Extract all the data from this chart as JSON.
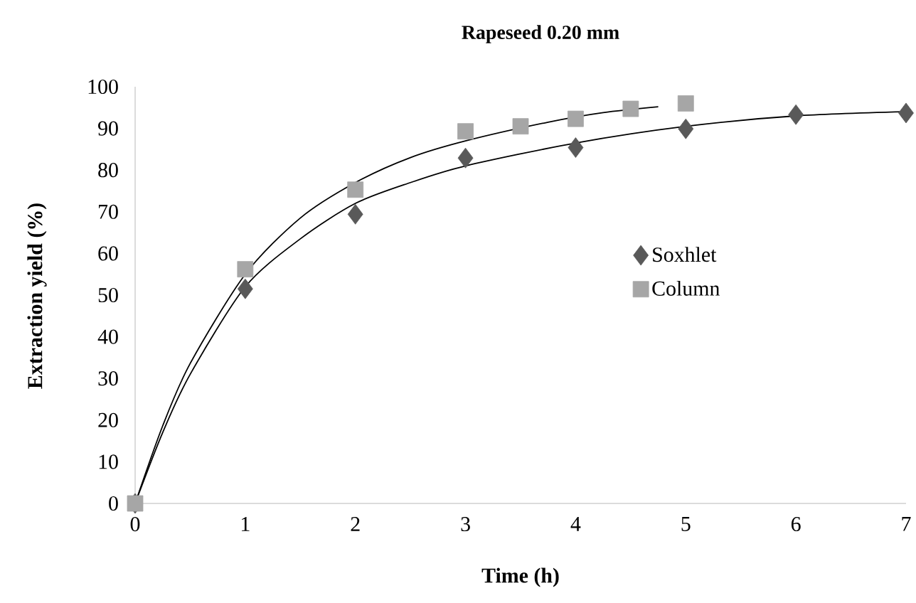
{
  "chart_data": {
    "type": "scatter",
    "title": "Rapeseed 0.20 mm",
    "xlabel": "Time (h)",
    "ylabel": "Extraction yield (%)",
    "xlim": [
      0,
      7
    ],
    "xticks": [
      0,
      1,
      2,
      3,
      4,
      5,
      6,
      7
    ],
    "ylim": [
      0,
      100
    ],
    "yticks": [
      0,
      10,
      20,
      30,
      40,
      50,
      60,
      70,
      80,
      90,
      100
    ],
    "grid": false,
    "legend": "right",
    "series": [
      {
        "name": "Soxhlet",
        "color": "#595959",
        "marker": "diamond",
        "x": [
          0,
          1,
          2,
          3,
          4,
          5,
          6,
          7
        ],
        "values": [
          0,
          51.5,
          69.4,
          82.9,
          85.4,
          89.9,
          93.3,
          93.7
        ]
      },
      {
        "name": "Column",
        "color": "#a6a6a6",
        "marker": "square",
        "x": [
          0,
          1,
          2,
          3,
          3.5,
          4,
          4.5,
          5
        ],
        "values": [
          0,
          56.2,
          75.3,
          89.3,
          90.5,
          92.3,
          94.7,
          96
        ]
      },
      {
        "type": "line",
        "color": "#000000",
        "marker": "none",
        "x": [
          0,
          0.25,
          0.5,
          1,
          1.5,
          2,
          2.5,
          3,
          4,
          5,
          6,
          7
        ],
        "values": [
          0,
          17,
          31,
          52,
          63.5,
          72,
          77,
          81,
          86.5,
          90.5,
          93,
          94
        ]
      },
      {
        "type": "line",
        "color": "#000000",
        "marker": "none",
        "x": [
          0,
          0.25,
          0.5,
          1,
          1.5,
          2,
          2.5,
          3,
          3.75,
          4.25,
          4.75
        ],
        "values": [
          0,
          18.6,
          33.6,
          55,
          68.5,
          77,
          83,
          87,
          91.5,
          93.8,
          95.2
        ]
      }
    ]
  }
}
